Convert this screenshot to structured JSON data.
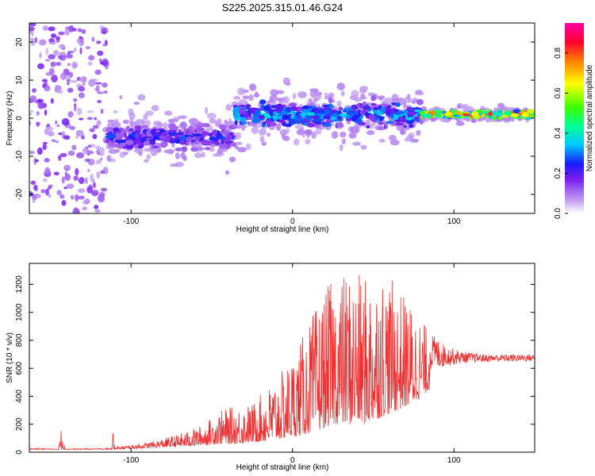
{
  "title": "S225.2025.315.01.46.G24",
  "chart_data": [
    {
      "type": "heatmap",
      "name": "spectrogram",
      "xlabel": "Height of straight line (km)",
      "ylabel": "Frequency (Hz)",
      "xlim": [
        -163,
        150
      ],
      "ylim": [
        -25,
        25
      ],
      "xticks": [
        -100,
        0,
        100
      ],
      "yticks": [
        -20,
        -10,
        0,
        10,
        20
      ],
      "colorbar": {
        "label": "Normalized spectral amplitude",
        "range": [
          0,
          0.95
        ],
        "ticks": [
          "0.0",
          "0.2",
          "0.4",
          "0.6",
          "0.8"
        ],
        "tick_values": [
          0,
          0.2,
          0.4,
          0.6,
          0.8
        ],
        "colors": [
          "#ffffff",
          "#c9a6f0",
          "#7a1ef0",
          "#1a1aff",
          "#00c8ff",
          "#00ff80",
          "#40ff00",
          "#ffff00",
          "#ff8000",
          "#ff0040",
          "#ff00a0"
        ]
      },
      "trend": [
        {
          "x_range": [
            -163,
            -115
          ],
          "note": "noise scatter",
          "center_freq": 0,
          "amplitude": 0.1
        },
        {
          "x_range": [
            -115,
            -36
          ],
          "center_freq": -5,
          "spread": 4,
          "amplitude": 0.3
        },
        {
          "x_range": [
            -36,
            80
          ],
          "center_freq": 1,
          "spread": 4,
          "amplitude": 0.4
        },
        {
          "x_range": [
            80,
            148
          ],
          "center_freq": 1,
          "spread": 1,
          "amplitude": 0.85
        }
      ]
    },
    {
      "type": "line",
      "name": "snr",
      "xlabel": "Height of straight line (km)",
      "ylabel": "SNR (10 * v/v)",
      "xlim": [
        -163,
        150
      ],
      "ylim": [
        0,
        1350
      ],
      "xticks": [
        -100,
        0,
        100
      ],
      "yticks": [
        0,
        200,
        400,
        600,
        800,
        1000,
        1200
      ],
      "color": "#f03030",
      "envelope": [
        {
          "x": -163,
          "base": 20,
          "peak": 30
        },
        {
          "x": -145,
          "base": 20,
          "peak": 25
        },
        {
          "x": -143,
          "base": 20,
          "peak": 200
        },
        {
          "x": -140,
          "base": 20,
          "peak": 25
        },
        {
          "x": -112,
          "base": 20,
          "peak": 30
        },
        {
          "x": -111,
          "base": 20,
          "peak": 160
        },
        {
          "x": -108,
          "base": 20,
          "peak": 40
        },
        {
          "x": -90,
          "base": 30,
          "peak": 70
        },
        {
          "x": -70,
          "base": 40,
          "peak": 130
        },
        {
          "x": -55,
          "base": 50,
          "peak": 200
        },
        {
          "x": -45,
          "base": 60,
          "peak": 300
        },
        {
          "x": -35,
          "base": 60,
          "peak": 330
        },
        {
          "x": -25,
          "base": 70,
          "peak": 350
        },
        {
          "x": -15,
          "base": 80,
          "peak": 470
        },
        {
          "x": -5,
          "base": 100,
          "peak": 600
        },
        {
          "x": 5,
          "base": 120,
          "peak": 800
        },
        {
          "x": 15,
          "base": 150,
          "peak": 1050
        },
        {
          "x": 25,
          "base": 200,
          "peak": 1250
        },
        {
          "x": 35,
          "base": 200,
          "peak": 1300
        },
        {
          "x": 45,
          "base": 200,
          "peak": 1250
        },
        {
          "x": 55,
          "base": 250,
          "peak": 1320
        },
        {
          "x": 65,
          "base": 300,
          "peak": 1180
        },
        {
          "x": 75,
          "base": 350,
          "peak": 1050
        },
        {
          "x": 85,
          "base": 450,
          "peak": 860
        },
        {
          "x": 95,
          "base": 550,
          "peak": 760
        },
        {
          "x": 105,
          "base": 600,
          "peak": 720
        },
        {
          "x": 120,
          "base": 620,
          "peak": 700
        },
        {
          "x": 150,
          "base": 630,
          "peak": 700
        }
      ]
    }
  ]
}
